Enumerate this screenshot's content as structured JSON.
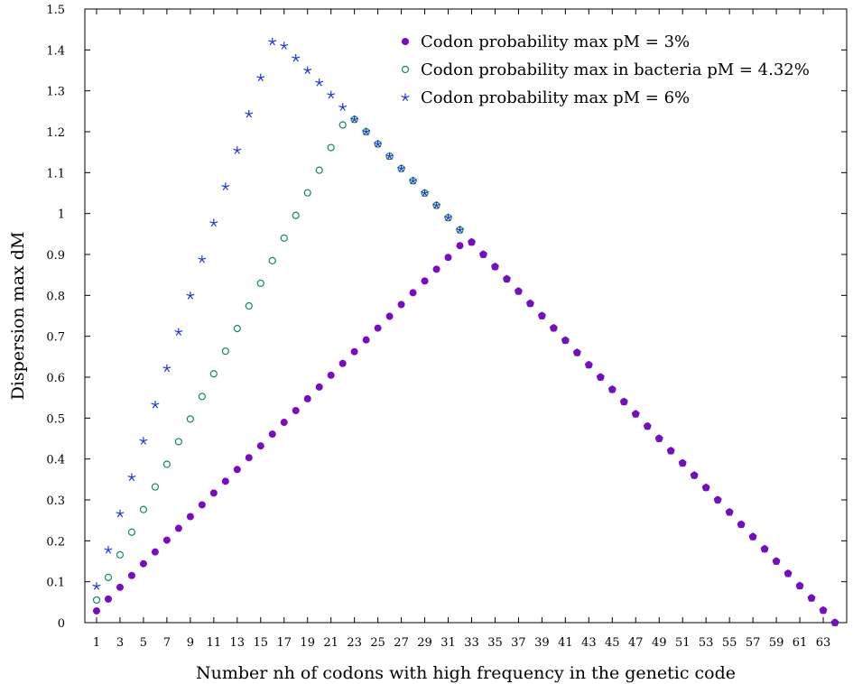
{
  "chart_data": {
    "type": "scatter",
    "xlabel": "Number nh of codons with high frequency in the genetic code",
    "ylabel": "Dispersion max dM",
    "xlim": [
      0,
      65
    ],
    "ylim": [
      0,
      1.5
    ],
    "x_ticks": [
      "1",
      "3",
      "5",
      "7",
      "9",
      "11",
      "13",
      "15",
      "17",
      "19",
      "21",
      "23",
      "25",
      "27",
      "29",
      "31",
      "33",
      "35",
      "37",
      "39",
      "41",
      "43",
      "45",
      "47",
      "49",
      "51",
      "53",
      "55",
      "57",
      "59",
      "61",
      "63"
    ],
    "y_ticks": [
      "0",
      "0.1",
      "0.2",
      "0.3",
      "0.4",
      "0.5",
      "0.6",
      "0.7",
      "0.8",
      "0.9",
      "1",
      "1.1",
      "1.2",
      "1.3",
      "1.4",
      "1.5"
    ],
    "legend_position": "top-right",
    "grid": false,
    "series": [
      {
        "name": "Codon probability max pM = 3%",
        "marker": "filled-circle",
        "color": "#7b0bbf",
        "x": [
          1,
          2,
          3,
          4,
          5,
          6,
          7,
          8,
          9,
          10,
          11,
          12,
          13,
          14,
          15,
          16,
          17,
          18,
          19,
          20,
          21,
          22,
          23,
          24,
          25,
          26,
          27,
          28,
          29,
          30,
          31,
          32,
          33,
          34,
          35,
          36,
          37,
          38,
          39,
          40,
          41,
          42,
          43,
          44,
          45,
          46,
          47,
          48,
          49,
          50,
          51,
          52,
          53,
          54,
          55,
          56,
          57,
          58,
          59,
          60,
          61,
          62,
          63,
          64
        ],
        "y": [
          0.0288,
          0.0576,
          0.0864,
          0.1152,
          0.144,
          0.1728,
          0.2016,
          0.2304,
          0.2592,
          0.288,
          0.3168,
          0.3456,
          0.3744,
          0.4032,
          0.432,
          0.4608,
          0.4896,
          0.5184,
          0.5472,
          0.576,
          0.6048,
          0.6336,
          0.6624,
          0.6912,
          0.72,
          0.7488,
          0.7776,
          0.8064,
          0.8352,
          0.864,
          0.8928,
          0.9216,
          0.93,
          0.9,
          0.87,
          0.84,
          0.81,
          0.78,
          0.75,
          0.72,
          0.69,
          0.66,
          0.63,
          0.6,
          0.57,
          0.54,
          0.51,
          0.48,
          0.45,
          0.42,
          0.39,
          0.36,
          0.33,
          0.3,
          0.27,
          0.24,
          0.21,
          0.18,
          0.15,
          0.12,
          0.09,
          0.06,
          0.03,
          0.0
        ]
      },
      {
        "name": "Codon probability max in bacteria pM = 4.32%",
        "marker": "open-circle",
        "color": "#118a5a",
        "x": [
          1,
          2,
          3,
          4,
          5,
          6,
          7,
          8,
          9,
          10,
          11,
          12,
          13,
          14,
          15,
          16,
          17,
          18,
          19,
          20,
          21,
          22,
          23,
          24,
          25,
          26,
          27,
          28,
          29,
          30,
          31,
          32,
          33,
          34,
          35,
          36,
          37,
          38,
          39,
          40,
          41,
          42,
          43,
          44,
          45,
          46,
          47,
          48,
          49,
          50,
          51,
          52,
          53,
          54,
          55,
          56,
          57,
          58,
          59,
          60,
          61,
          62,
          63,
          64
        ],
        "y": [
          0.0553,
          0.1106,
          0.1659,
          0.2212,
          0.2765,
          0.3318,
          0.3871,
          0.4424,
          0.4977,
          0.553,
          0.6083,
          0.6636,
          0.7189,
          0.7742,
          0.8295,
          0.8848,
          0.9401,
          0.9954,
          1.0507,
          1.106,
          1.1613,
          1.2166,
          1.23,
          1.2,
          1.17,
          1.14,
          1.11,
          1.08,
          1.05,
          1.02,
          0.99,
          0.96,
          0.93,
          0.9,
          0.87,
          0.84,
          0.81,
          0.78,
          0.75,
          0.72,
          0.69,
          0.66,
          0.63,
          0.6,
          0.57,
          0.54,
          0.51,
          0.48,
          0.45,
          0.42,
          0.39,
          0.36,
          0.33,
          0.3,
          0.27,
          0.24,
          0.21,
          0.18,
          0.15,
          0.12,
          0.09,
          0.06,
          0.03,
          0.0
        ]
      },
      {
        "name": "Codon probability max pM = 6%",
        "marker": "star",
        "color": "#1e35d6",
        "x": [
          1,
          2,
          3,
          4,
          5,
          6,
          7,
          8,
          9,
          10,
          11,
          12,
          13,
          14,
          15,
          16,
          17,
          18,
          19,
          20,
          21,
          22,
          23,
          24,
          25,
          26,
          27,
          28,
          29,
          30,
          31,
          32,
          33,
          34,
          35,
          36,
          37,
          38,
          39,
          40,
          41,
          42,
          43,
          44,
          45,
          46,
          47,
          48,
          49,
          50,
          51,
          52,
          53,
          54,
          55,
          56,
          57,
          58,
          59,
          60,
          61,
          62,
          63,
          64
        ],
        "y": [
          0.0888,
          0.1776,
          0.2664,
          0.3552,
          0.444,
          0.5328,
          0.6216,
          0.7104,
          0.7992,
          0.888,
          0.9768,
          1.0656,
          1.1544,
          1.2432,
          1.332,
          1.42,
          1.41,
          1.38,
          1.35,
          1.32,
          1.29,
          1.26,
          1.23,
          1.2,
          1.17,
          1.14,
          1.11,
          1.08,
          1.05,
          1.02,
          0.99,
          0.96,
          0.93,
          0.9,
          0.87,
          0.84,
          0.81,
          0.78,
          0.75,
          0.72,
          0.69,
          0.66,
          0.63,
          0.6,
          0.57,
          0.54,
          0.51,
          0.48,
          0.45,
          0.42,
          0.39,
          0.36,
          0.33,
          0.3,
          0.27,
          0.24,
          0.21,
          0.18,
          0.15,
          0.12,
          0.09,
          0.06,
          0.03,
          0.0
        ]
      }
    ]
  }
}
